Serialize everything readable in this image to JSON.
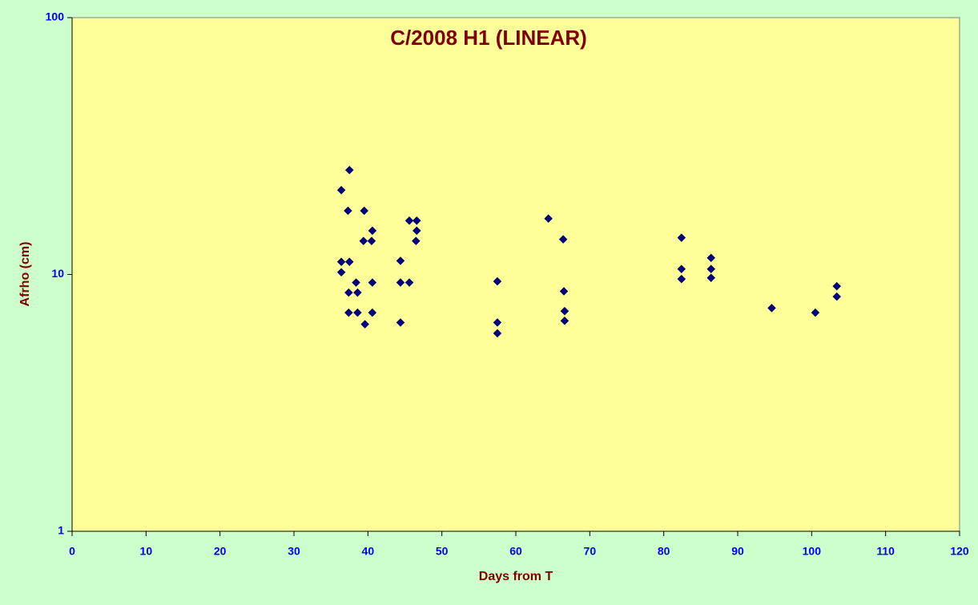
{
  "chart_data": {
    "type": "scatter",
    "title": "C/2008 H1 (LINEAR)",
    "x_label": "Days from T",
    "y_label": "Afrho (cm)",
    "log_y": true,
    "marker_color": "#000080",
    "xlim": [
      0,
      120
    ],
    "xticks": [
      0,
      10,
      20,
      30,
      40,
      50,
      60,
      70,
      80,
      90,
      100,
      110,
      120
    ],
    "ylim": [
      1,
      100
    ],
    "yticks": [
      1,
      10,
      100
    ],
    "series": [
      {
        "color": "#000080",
        "x": [
          36.4,
          37.5,
          37.3,
          39.5,
          36.4,
          37.5,
          36.4,
          38.4,
          37.4,
          38.6,
          37.4,
          38.6,
          39.6,
          40.6,
          40.6,
          39.4,
          40.5,
          40.6,
          44.4,
          44.4,
          45.6,
          44.4,
          45.6,
          46.6,
          46.6,
          46.5,
          57.5,
          57.5,
          57.5,
          64.4,
          66.4,
          66.5,
          66.6,
          66.6,
          82.4,
          82.4,
          82.4,
          86.4,
          86.4,
          86.4,
          94.6,
          100.5,
          103.4,
          103.4
        ],
        "values": [
          21.3,
          25.5,
          17.7,
          17.7,
          11.2,
          11.2,
          10.2,
          9.3,
          8.5,
          8.5,
          7.1,
          7.1,
          6.4,
          7.1,
          9.3,
          13.5,
          13.5,
          14.8,
          11.3,
          9.3,
          9.3,
          6.5,
          16.2,
          16.2,
          14.8,
          13.5,
          9.4,
          6.5,
          5.9,
          16.5,
          13.7,
          8.6,
          7.2,
          6.6,
          13.9,
          10.5,
          9.6,
          11.6,
          10.5,
          9.7,
          7.4,
          7.1,
          9.0,
          8.2
        ]
      }
    ]
  }
}
